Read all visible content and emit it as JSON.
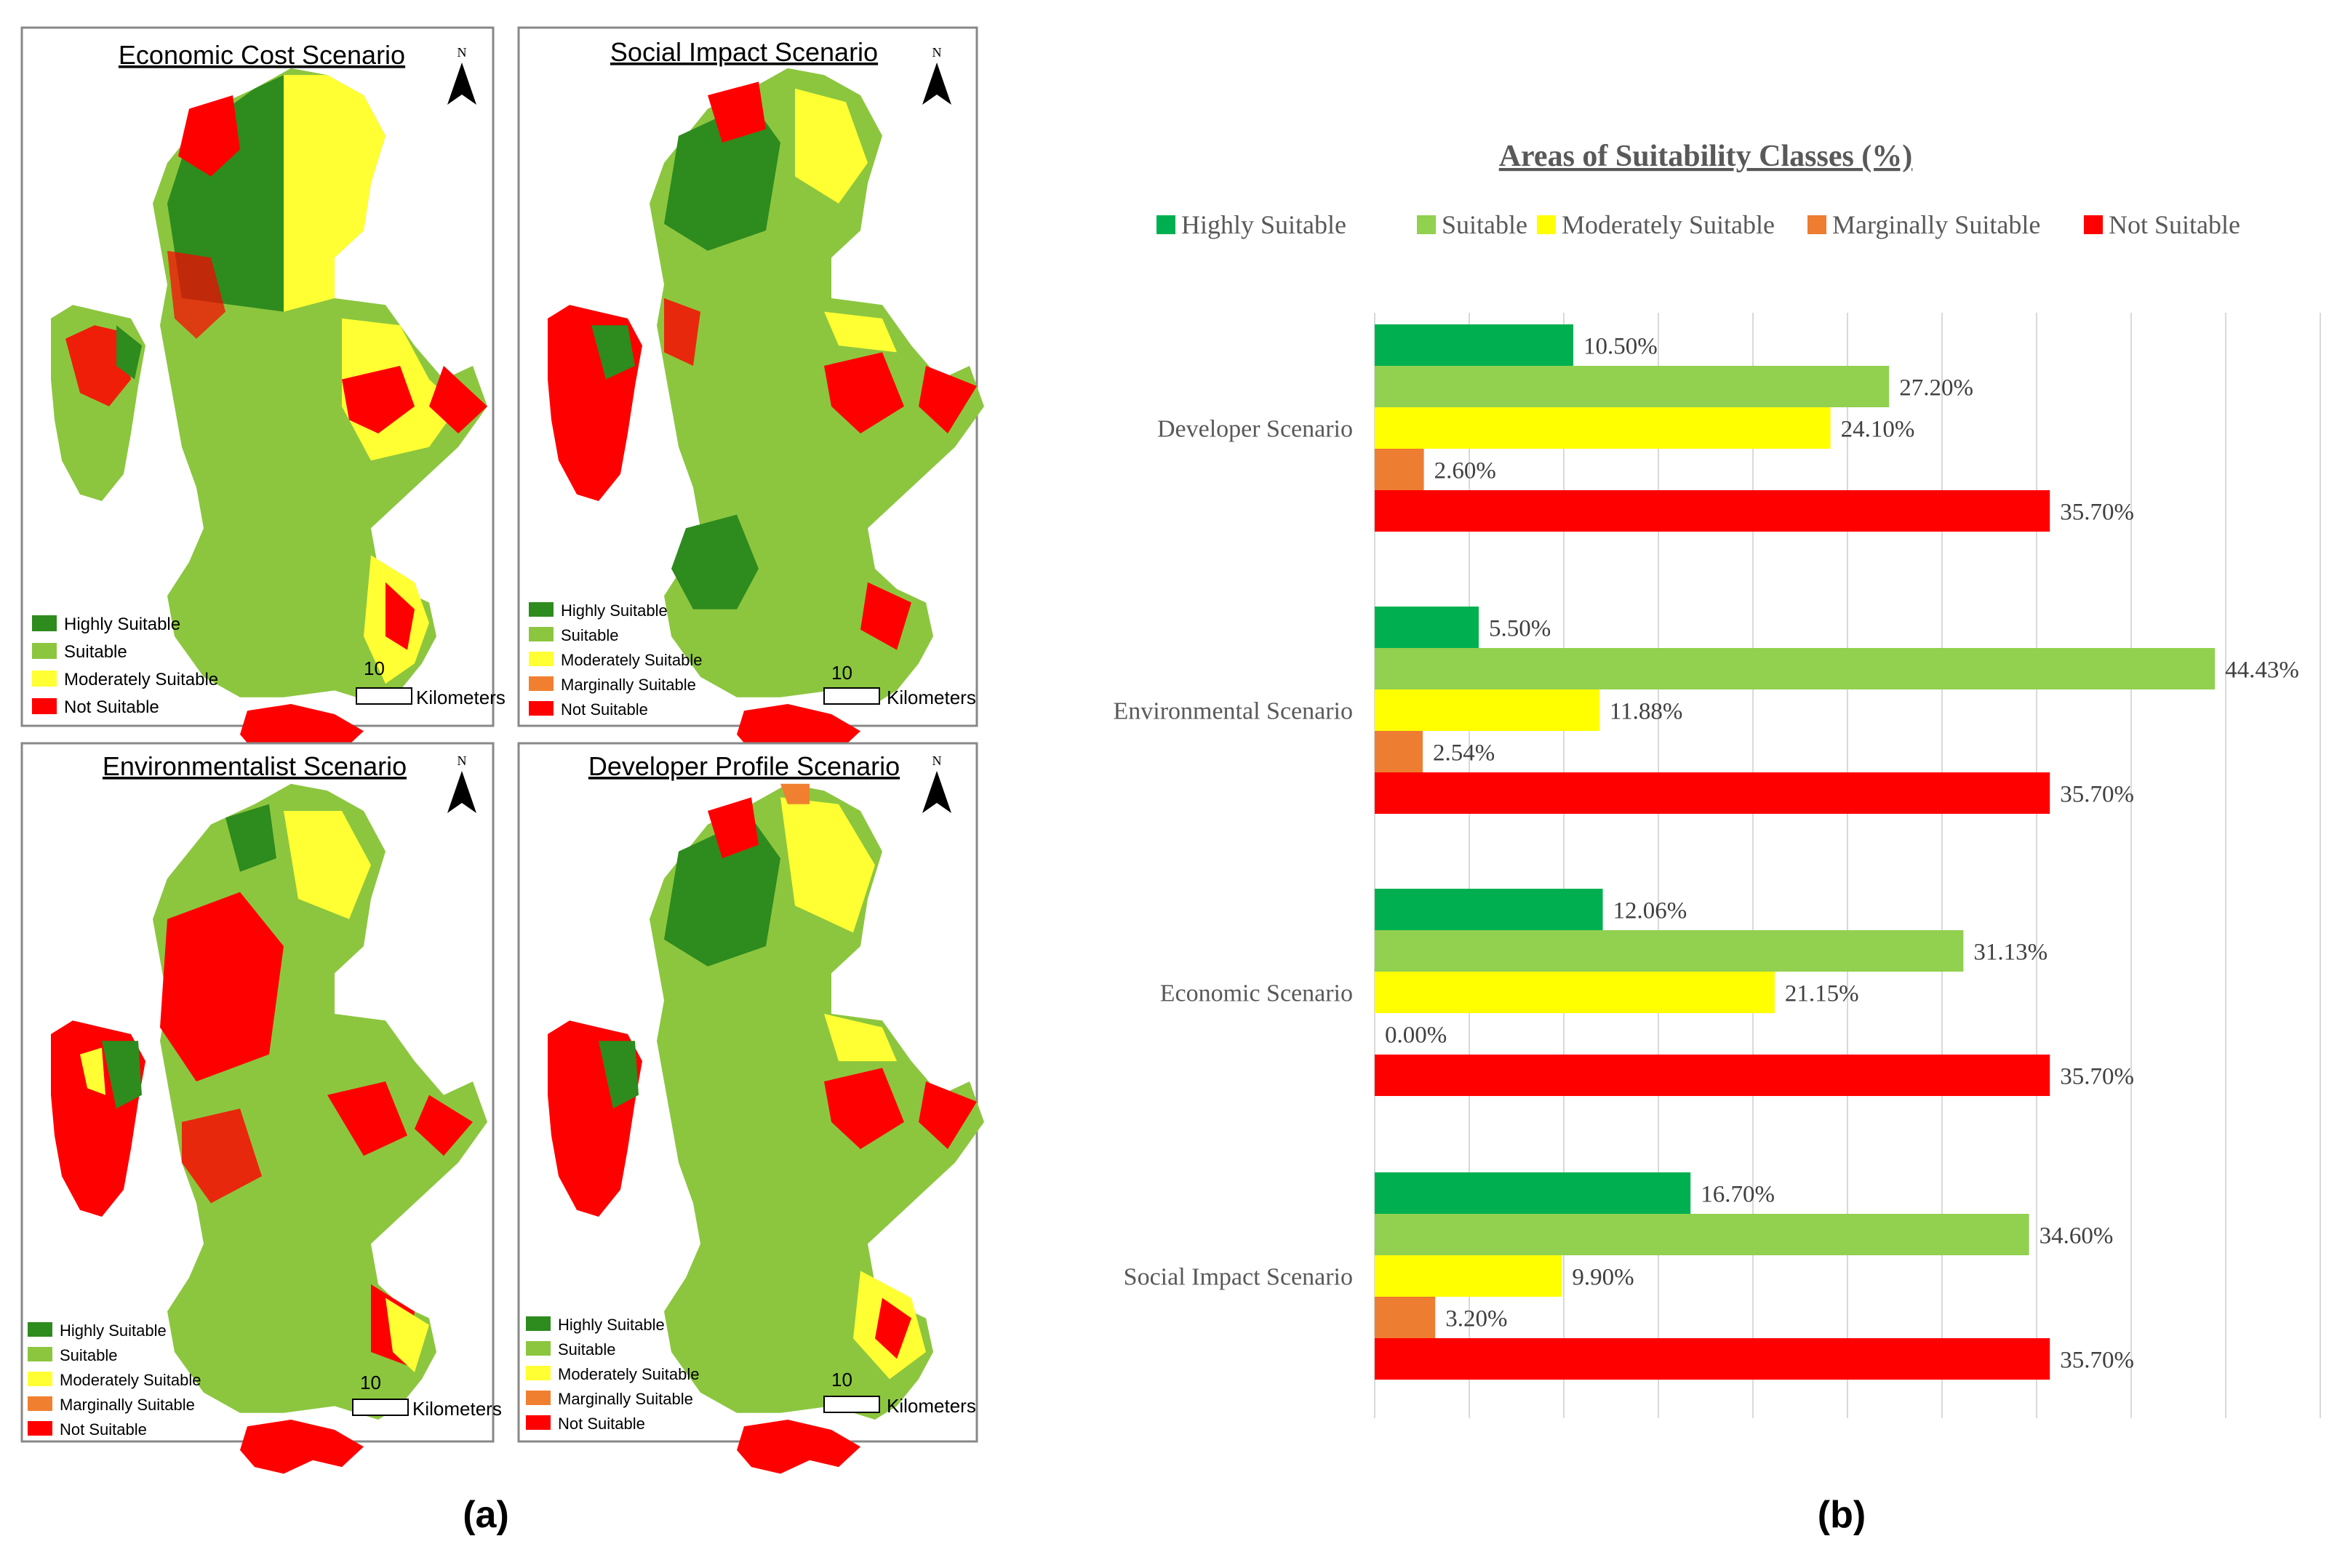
{
  "colors": {
    "highly_suitable_map": "#2e8b1e",
    "suitable_map": "#8cc63f",
    "moderately_suitable": "#ffff33",
    "marginally_suitable": "#f08030",
    "not_suitable": "#ff0000",
    "highly_suitable_chart": "#00b050",
    "suitable_chart": "#92d050",
    "moderately_chart": "#ffff00",
    "marginally_chart": "#ed7d31",
    "not_suitable_chart": "#ff0000"
  },
  "panel_a": {
    "label": "(a)",
    "maps": [
      {
        "title": "Economic Cost Scenario",
        "north": "N",
        "scale_value": "10",
        "scale_unit": "Kilometers",
        "legend": [
          "Highly Suitable",
          "Suitable",
          "Moderately Suitable",
          "Not Suitable"
        ]
      },
      {
        "title": "Social Impact Scenario",
        "north": "N",
        "scale_value": "10",
        "scale_unit": "Kilometers",
        "legend": [
          "Highly Suitable",
          "Suitable",
          "Moderately Suitable",
          "Marginally Suitable",
          "Not Suitable"
        ]
      },
      {
        "title": "Environmentalist Scenario",
        "north": "N",
        "scale_value": "10",
        "scale_unit": "Kilometers",
        "legend": [
          "Highly Suitable",
          "Suitable",
          "Moderately Suitable",
          "Marginally Suitable",
          "Not Suitable"
        ]
      },
      {
        "title": "Developer Profile Scenario",
        "north": "N",
        "scale_value": "10",
        "scale_unit": "Kilometers",
        "legend": [
          "Highly Suitable",
          "Suitable",
          "Moderately Suitable",
          "Marginally Suitable",
          "Not Suitable"
        ]
      }
    ]
  },
  "panel_b": {
    "label": "(b)"
  },
  "chart_data": {
    "type": "bar",
    "orientation": "horizontal",
    "title": "Areas of Suitability Classes (%)",
    "legend_position": "top",
    "grid": true,
    "xlim": [
      0,
      50
    ],
    "categories": [
      "Developer Scenario",
      "Environmental Scenario",
      "Economic Scenario",
      "Social Impact Scenario"
    ],
    "series": [
      {
        "name": "Highly Suitable",
        "values": [
          10.5,
          5.5,
          12.06,
          16.7
        ],
        "labels": [
          "10.50%",
          "5.50%",
          "12.06%",
          "16.70%"
        ]
      },
      {
        "name": "Suitable",
        "values": [
          27.2,
          44.43,
          31.13,
          34.6
        ],
        "labels": [
          "27.20%",
          "44.43%",
          "31.13%",
          "34.60%"
        ]
      },
      {
        "name": "Moderately Suitable",
        "values": [
          24.1,
          11.88,
          21.15,
          9.9
        ],
        "labels": [
          "24.10%",
          "11.88%",
          "21.15%",
          "9.90%"
        ]
      },
      {
        "name": "Marginally Suitable",
        "values": [
          2.6,
          2.54,
          0.0,
          3.2
        ],
        "labels": [
          "2.60%",
          "2.54%",
          "0.00%",
          "3.20%"
        ]
      },
      {
        "name": "Not Suitable",
        "values": [
          35.7,
          35.7,
          35.7,
          35.7
        ],
        "labels": [
          "35.70%",
          "35.70%",
          "35.70%",
          "35.70%"
        ]
      }
    ]
  }
}
